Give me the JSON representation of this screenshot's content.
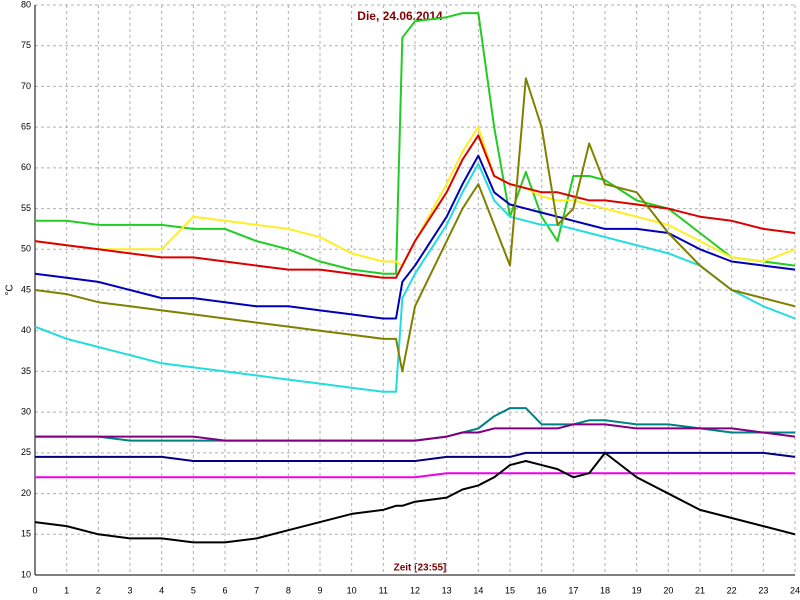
{
  "chart_data": {
    "type": "line",
    "title": "Die, 24.06.2014",
    "x_label": "Zeit [23:55]",
    "y_label": "°C",
    "title_color": "#800000",
    "x": [
      0,
      1,
      2,
      3,
      4,
      5,
      6,
      7,
      8,
      9,
      10,
      11,
      11.4,
      11.6,
      12,
      13,
      13.5,
      14,
      14.5,
      15,
      15.5,
      16,
      16.5,
      17,
      17.5,
      18,
      19,
      20,
      21,
      22,
      23,
      24
    ],
    "series": [
      {
        "color": "#22cc22",
        "values": [
          53.5,
          53.5,
          53,
          53,
          53,
          52.5,
          52.5,
          51,
          50,
          48.5,
          47.5,
          47,
          47,
          76,
          78,
          78.5,
          79,
          79,
          65,
          54,
          59.5,
          54,
          51,
          59,
          59,
          58.5,
          56,
          55,
          52,
          49,
          48.5,
          48
        ]
      },
      {
        "color": "#ffee22",
        "values": [
          51,
          50.5,
          50,
          50,
          50,
          54,
          53.5,
          53,
          52.5,
          51.5,
          49.5,
          48.5,
          48.5,
          48,
          51,
          58,
          62,
          65,
          59,
          58,
          57.5,
          56.5,
          56,
          56,
          55.5,
          55,
          54,
          53,
          51,
          49,
          48.5,
          50
        ]
      },
      {
        "color": "#dd0000",
        "values": [
          51,
          50.5,
          50,
          49.5,
          49,
          49,
          48.5,
          48,
          47.5,
          47.5,
          47,
          46.5,
          46.5,
          48,
          51,
          57,
          61,
          64,
          59,
          58,
          57.5,
          57,
          57,
          56.5,
          56,
          56,
          55.5,
          55,
          54,
          53.5,
          52.5,
          52
        ]
      },
      {
        "color": "#22dddd",
        "values": [
          40.5,
          39,
          38,
          37,
          36,
          35.5,
          35,
          34.5,
          34,
          33.5,
          33,
          32.5,
          32.5,
          44,
          47,
          53,
          57,
          60.5,
          56,
          54,
          53.5,
          53,
          53,
          52.5,
          52,
          51.5,
          50.5,
          49.5,
          48,
          45,
          43,
          41.5
        ]
      },
      {
        "color": "#0000bb",
        "values": [
          47,
          46.5,
          46,
          45,
          44,
          44,
          43.5,
          43,
          43,
          42.5,
          42,
          41.5,
          41.5,
          46,
          48,
          54,
          58,
          61.5,
          57,
          55.5,
          55,
          54.5,
          54,
          53.5,
          53,
          52.5,
          52.5,
          52,
          50,
          48.5,
          48,
          47.5
        ]
      },
      {
        "color": "#808000",
        "values": [
          45,
          44.5,
          43.5,
          43,
          42.5,
          42,
          41.5,
          41,
          40.5,
          40,
          39.5,
          39,
          39,
          35,
          43,
          51,
          55,
          58,
          53,
          48,
          71,
          65,
          53,
          55,
          63,
          58,
          57,
          52,
          48,
          45,
          44,
          43
        ]
      },
      {
        "color": "#008080",
        "values": [
          27,
          27,
          27,
          26.5,
          26.5,
          26.5,
          26.5,
          26.5,
          26.5,
          26.5,
          26.5,
          26.5,
          26.5,
          26.5,
          26.5,
          27,
          27.5,
          28,
          29.5,
          30.5,
          30.5,
          28.5,
          28.5,
          28.5,
          29,
          29,
          28.5,
          28.5,
          28,
          27.5,
          27.5,
          27.5
        ]
      },
      {
        "color": "#800080",
        "values": [
          27,
          27,
          27,
          27,
          27,
          27,
          26.5,
          26.5,
          26.5,
          26.5,
          26.5,
          26.5,
          26.5,
          26.5,
          26.5,
          27,
          27.5,
          27.5,
          28,
          28,
          28,
          28,
          28,
          28.5,
          28.5,
          28.5,
          28,
          28,
          28,
          28,
          27.5,
          27
        ]
      },
      {
        "color": "#000080",
        "values": [
          24.5,
          24.5,
          24.5,
          24.5,
          24.5,
          24,
          24,
          24,
          24,
          24,
          24,
          24,
          24,
          24,
          24,
          24.5,
          24.5,
          24.5,
          24.5,
          24.5,
          25,
          25,
          25,
          25,
          25,
          25,
          25,
          25,
          25,
          25,
          25,
          24.5
        ]
      },
      {
        "color": "#ee00ee",
        "values": [
          22,
          22,
          22,
          22,
          22,
          22,
          22,
          22,
          22,
          22,
          22,
          22,
          22,
          22,
          22,
          22.5,
          22.5,
          22.5,
          22.5,
          22.5,
          22.5,
          22.5,
          22.5,
          22.5,
          22.5,
          22.5,
          22.5,
          22.5,
          22.5,
          22.5,
          22.5,
          22.5
        ]
      },
      {
        "color": "#000000",
        "values": [
          16.5,
          16,
          15,
          14.5,
          14.5,
          14,
          14,
          14.5,
          15.5,
          16.5,
          17.5,
          18,
          18.5,
          18.5,
          19,
          19.5,
          20.5,
          21,
          22,
          23.5,
          24,
          23.5,
          23,
          22,
          22.5,
          25,
          22,
          20,
          18,
          17,
          16,
          15
        ]
      }
    ],
    "xlim": [
      0,
      24
    ],
    "ylim": [
      10,
      80
    ],
    "xticks": [
      0,
      1,
      2,
      3,
      4,
      5,
      6,
      7,
      8,
      9,
      10,
      11,
      12,
      13,
      14,
      15,
      16,
      17,
      18,
      19,
      20,
      21,
      22,
      23,
      24
    ],
    "yticks": [
      10,
      15,
      20,
      25,
      30,
      35,
      40,
      45,
      50,
      55,
      60,
      65,
      70,
      75,
      80
    ],
    "grid": true
  }
}
